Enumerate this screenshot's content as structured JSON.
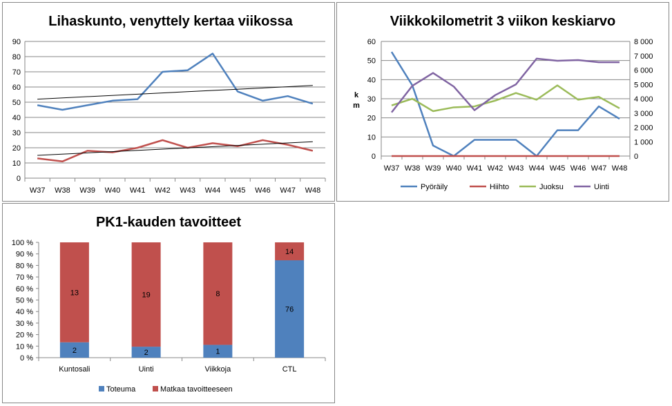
{
  "chart_data": [
    {
      "type": "line",
      "title": "Lihaskunto, venyttely kertaa viikossa",
      "xlabel": "",
      "ylabel": "",
      "categories": [
        "W37",
        "W38",
        "W39",
        "W40",
        "W41",
        "W42",
        "W43",
        "W44",
        "W45",
        "W46",
        "W47",
        "W48"
      ],
      "ylim": [
        0,
        90
      ],
      "yticks": [
        "0",
        "10",
        "20",
        "30",
        "40",
        "50",
        "60",
        "70",
        "80",
        "90"
      ],
      "grid": true,
      "legend": "none",
      "series": [
        {
          "values": [
            48,
            45,
            48,
            51,
            52,
            70,
            71,
            82,
            57,
            51,
            54,
            49
          ],
          "color": "#4F81BD"
        },
        {
          "values": [
            13,
            11,
            18,
            17,
            20,
            25,
            20,
            23,
            21,
            25,
            22,
            18
          ],
          "color": "#C0504D"
        }
      ],
      "trendlines": [
        {
          "values": [
            52,
            61
          ],
          "color": "#000000"
        },
        {
          "values": [
            15,
            24
          ],
          "color": "#000000"
        }
      ]
    },
    {
      "type": "line",
      "title": "Viikkokilometrit 3 viikon keskiarvo",
      "ylabel": "km",
      "categories": [
        "W37",
        "W38",
        "W39",
        "W40",
        "W41",
        "W42",
        "W43",
        "W44",
        "W45",
        "W46",
        "W47",
        "W48"
      ],
      "ylim": [
        0,
        60
      ],
      "yticks": [
        "0",
        "10",
        "20",
        "30",
        "40",
        "50",
        "60"
      ],
      "y2lim": [
        0,
        8000
      ],
      "y2ticks": [
        "0",
        "1 000",
        "2 000",
        "3 000",
        "4 000",
        "5 000",
        "6 000",
        "7 000",
        "8 000"
      ],
      "grid": true,
      "legend": "bottom",
      "series": [
        {
          "name": "Pyöräily",
          "axis": "left",
          "color": "#4F81BD",
          "values": [
            54.5,
            37,
            5.5,
            0,
            8.5,
            8.5,
            8.5,
            0,
            13.5,
            13.5,
            26,
            19.5
          ]
        },
        {
          "name": "Hiihto",
          "axis": "left",
          "color": "#C0504D",
          "values": [
            0,
            0,
            0,
            0,
            0,
            0,
            0,
            0,
            0,
            0,
            0,
            0
          ]
        },
        {
          "name": "Juoksu",
          "axis": "left",
          "color": "#9BBB59",
          "values": [
            26.5,
            30,
            23.5,
            25.5,
            26,
            29,
            33,
            29.5,
            37,
            29.5,
            31,
            25
          ]
        },
        {
          "name": "Uinti",
          "axis": "right",
          "color": "#8064A2",
          "values": [
            3050,
            4900,
            5800,
            4850,
            3200,
            4250,
            5000,
            6800,
            6650,
            6700,
            6550,
            6550
          ]
        }
      ]
    },
    {
      "type": "bar",
      "stacked": "percent",
      "title": "PK1-kauden tavoitteet",
      "categories": [
        "Kuntosali",
        "Uinti",
        "Viikkoja",
        "CTL"
      ],
      "yticks": [
        "0 %",
        "10 %",
        "20 %",
        "30 %",
        "40 %",
        "50 %",
        "60 %",
        "70 %",
        "80 %",
        "90 %",
        "100 %"
      ],
      "legend": "bottom",
      "series": [
        {
          "name": "Toteuma",
          "color": "#4F81BD",
          "values": [
            2,
            2,
            1,
            76
          ]
        },
        {
          "name": "Matkaa tavoitteeseen",
          "color": "#C0504D",
          "values": [
            13,
            19,
            8,
            14
          ]
        }
      ]
    }
  ]
}
